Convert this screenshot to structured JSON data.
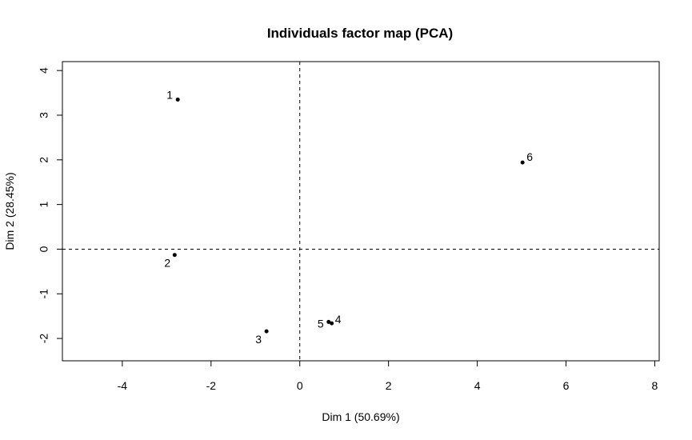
{
  "chart_data": {
    "type": "scatter",
    "title": "Individuals factor map (PCA)",
    "xlabel": "Dim 1 (50.69%)",
    "ylabel": "Dim 2 (28.45%)",
    "xlim": [
      -5.35,
      8.1
    ],
    "ylim": [
      -2.5,
      4.2
    ],
    "xticks": [
      "-4",
      "-2",
      "0",
      "2",
      "4",
      "6",
      "8"
    ],
    "yticks": [
      "-2",
      "-1",
      "0",
      "1",
      "2",
      "3",
      "4"
    ],
    "grid": false,
    "reference_lines": {
      "vertical_x": 0,
      "horizontal_y": 0,
      "style": "dashed"
    },
    "points": [
      {
        "label": "1",
        "x": -2.75,
        "y": 3.35
      },
      {
        "label": "2",
        "x": -2.82,
        "y": -0.13
      },
      {
        "label": "3",
        "x": -0.75,
        "y": -1.84
      },
      {
        "label": "4",
        "x": 0.72,
        "y": -1.66
      },
      {
        "label": "5",
        "x": 0.65,
        "y": -1.63
      },
      {
        "label": "6",
        "x": 5.02,
        "y": 1.94
      }
    ],
    "colors": {
      "points": "#000000",
      "axes": "#000000",
      "reference_lines": "#000000"
    }
  }
}
